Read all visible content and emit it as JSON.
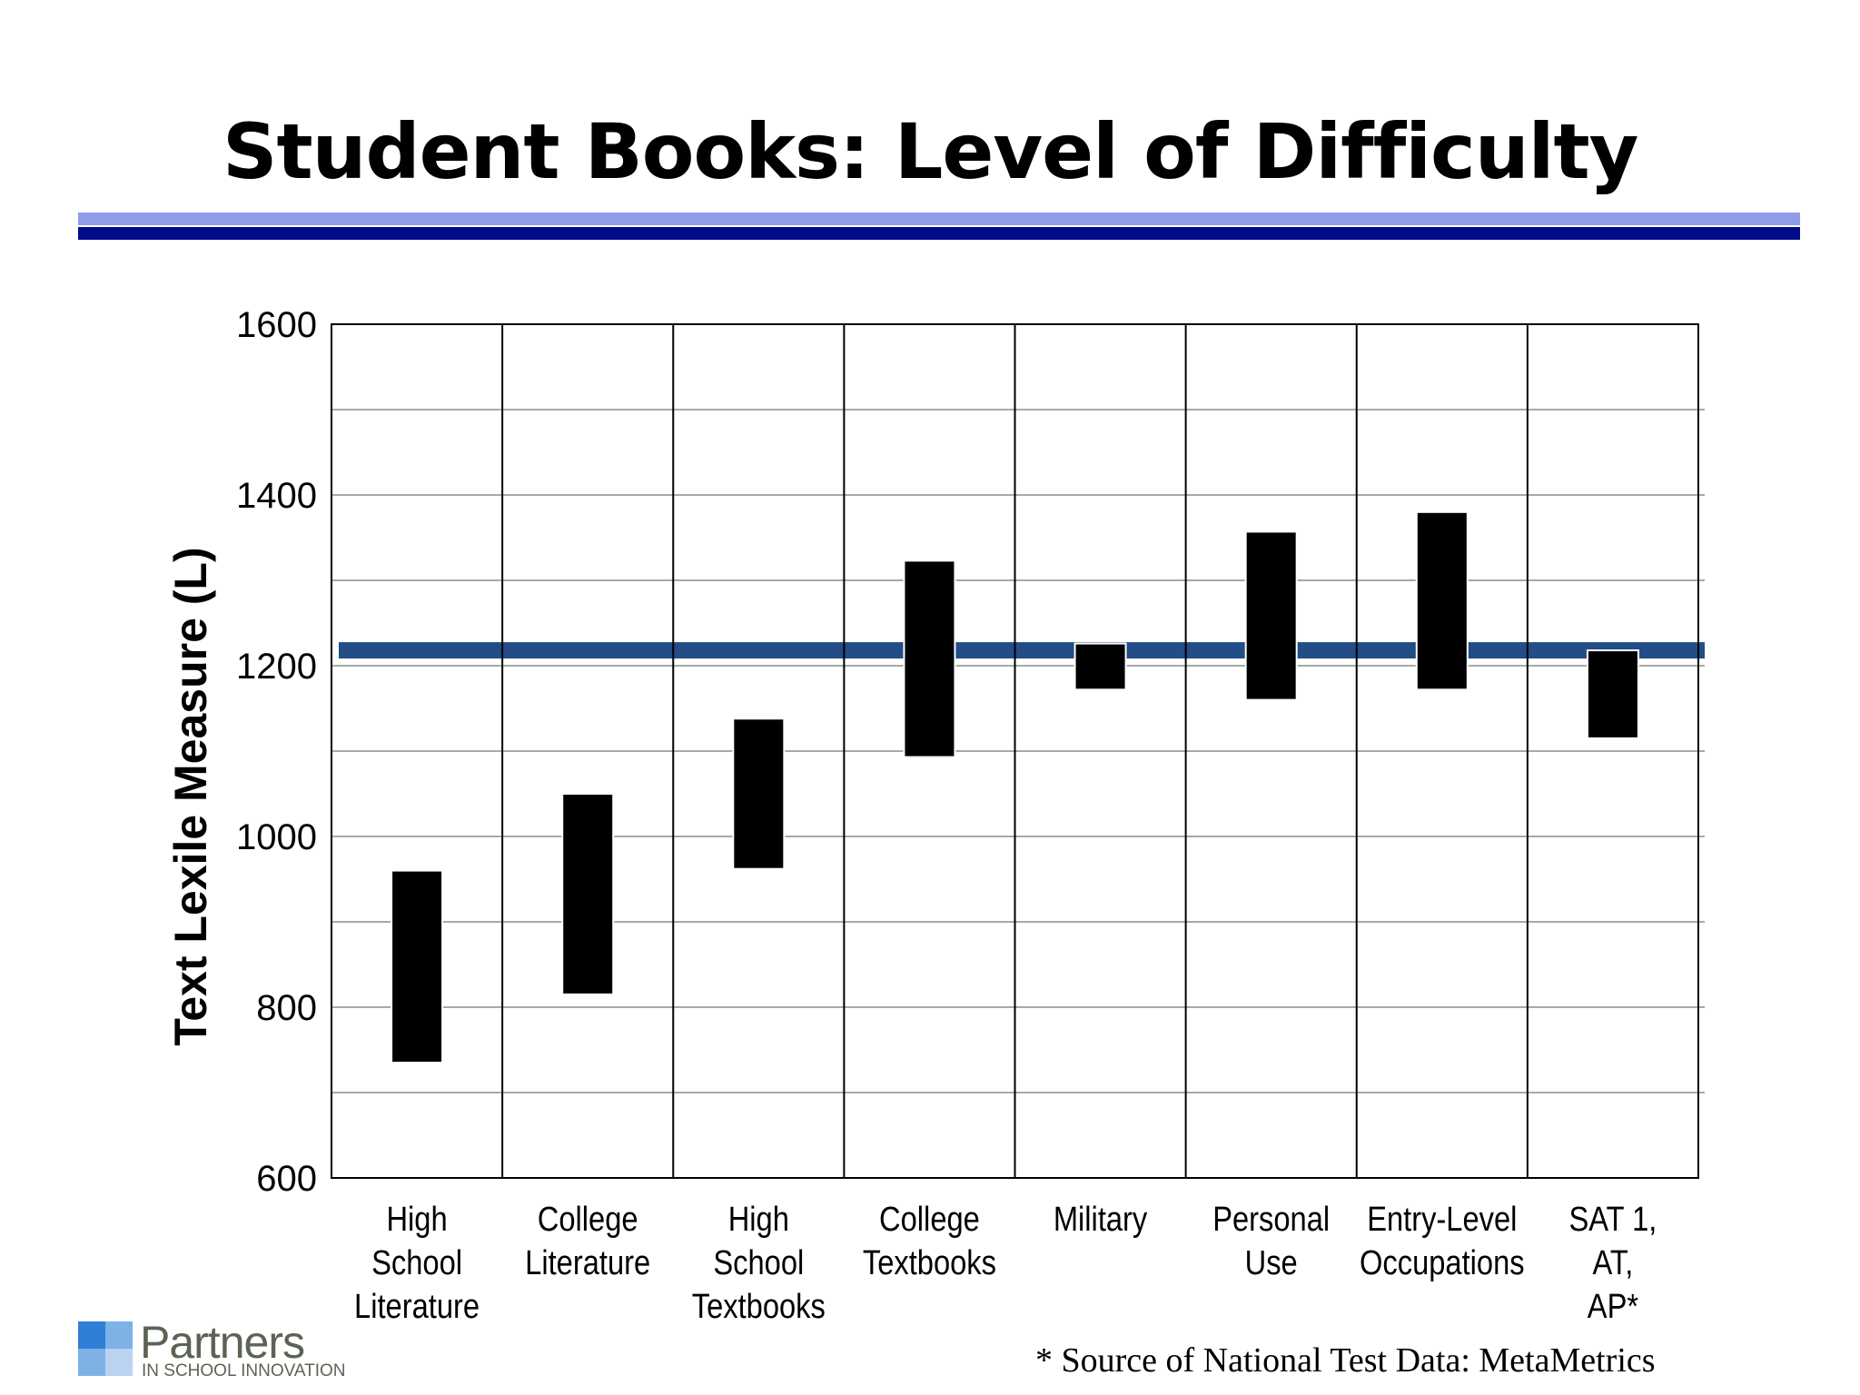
{
  "slide": {
    "title": "Student Books: Level of Difficulty",
    "source_note": "* Source of National Test Data: MetaMetrics"
  },
  "logo": {
    "name": "Partners",
    "tagline": "IN SCHOOL INNOVATION",
    "colors": [
      "#2f7fd6",
      "#7fb1e6",
      "#b9d3f0"
    ]
  },
  "chart_data": {
    "type": "bar",
    "title": "",
    "xlabel": "",
    "ylabel": "Text Lexile Measure (L)",
    "ylim": [
      600,
      1600
    ],
    "yticks": [
      600,
      800,
      1000,
      1200,
      1400,
      1600
    ],
    "grid": true,
    "categories": [
      [
        "High",
        "School",
        "Literature"
      ],
      [
        "College",
        "Literature"
      ],
      [
        "High",
        "School",
        "Textbooks"
      ],
      [
        "College",
        "Textbooks"
      ],
      [
        "Military"
      ],
      [
        "Personal",
        "Use"
      ],
      [
        "Entry-Level",
        "Occupations"
      ],
      [
        "SAT 1,",
        "AT,",
        "AP*"
      ]
    ],
    "ranges": [
      [
        735,
        960
      ],
      [
        815,
        1050
      ],
      [
        962,
        1138
      ],
      [
        1093,
        1323
      ],
      [
        1172,
        1226
      ],
      [
        1160,
        1357
      ],
      [
        1172,
        1380
      ],
      [
        1115,
        1218
      ]
    ],
    "reference_line": {
      "value": 1218,
      "color": "#224d86"
    },
    "bar_color": "#000000"
  }
}
